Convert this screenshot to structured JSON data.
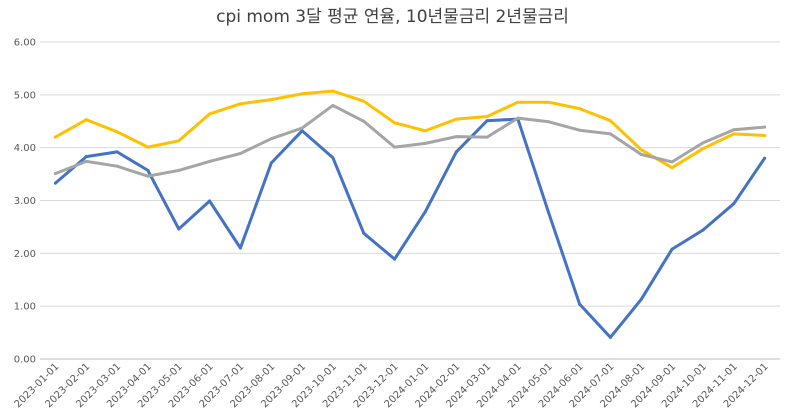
{
  "chart_data": {
    "type": "line",
    "title": "cpi mom 3달 평균 연율, 10년물금리 2년물금리",
    "xlabel": "",
    "ylabel": "",
    "ylim": [
      0,
      6
    ],
    "yticks": [
      "0.00",
      "1.00",
      "2.00",
      "3.00",
      "4.00",
      "5.00",
      "6.00"
    ],
    "grid": true,
    "legend": "none",
    "categories": [
      "2023-01-01",
      "2023-02-01",
      "2023-03-01",
      "2023-04-01",
      "2023-05-01",
      "2023-06-01",
      "2023-07-01",
      "2023-08-01",
      "2023-09-01",
      "2023-10-01",
      "2023-11-01",
      "2023-12-01",
      "2024-01-01",
      "2024-02-01",
      "2024-03-01",
      "2024-04-01",
      "2024-05-01",
      "2024-06-01",
      "2024-07-01",
      "2024-08-01",
      "2024-09-01",
      "2024-10-01",
      "2024-11-01",
      "2024-12-01"
    ],
    "series": [
      {
        "color": "#4472C4",
        "values": [
          3.33,
          3.83,
          3.92,
          3.57,
          2.46,
          2.99,
          2.1,
          3.71,
          4.32,
          3.81,
          2.38,
          1.89,
          2.79,
          3.92,
          4.51,
          4.54,
          2.76,
          1.04,
          0.41,
          1.13,
          2.08,
          2.44,
          2.94,
          3.8
        ]
      },
      {
        "color": "#FFC000",
        "values": [
          4.2,
          4.53,
          4.3,
          4.01,
          4.13,
          4.64,
          4.83,
          4.91,
          5.02,
          5.07,
          4.88,
          4.47,
          4.32,
          4.54,
          4.59,
          4.86,
          4.86,
          4.74,
          4.51,
          3.96,
          3.62,
          3.98,
          4.26,
          4.23
        ]
      },
      {
        "color": "#A5A5A5",
        "values": [
          3.51,
          3.74,
          3.65,
          3.46,
          3.57,
          3.74,
          3.89,
          4.17,
          4.37,
          4.8,
          4.5,
          4.01,
          4.08,
          4.21,
          4.2,
          4.56,
          4.49,
          4.33,
          4.26,
          3.87,
          3.73,
          4.09,
          4.34,
          4.39
        ]
      }
    ]
  }
}
